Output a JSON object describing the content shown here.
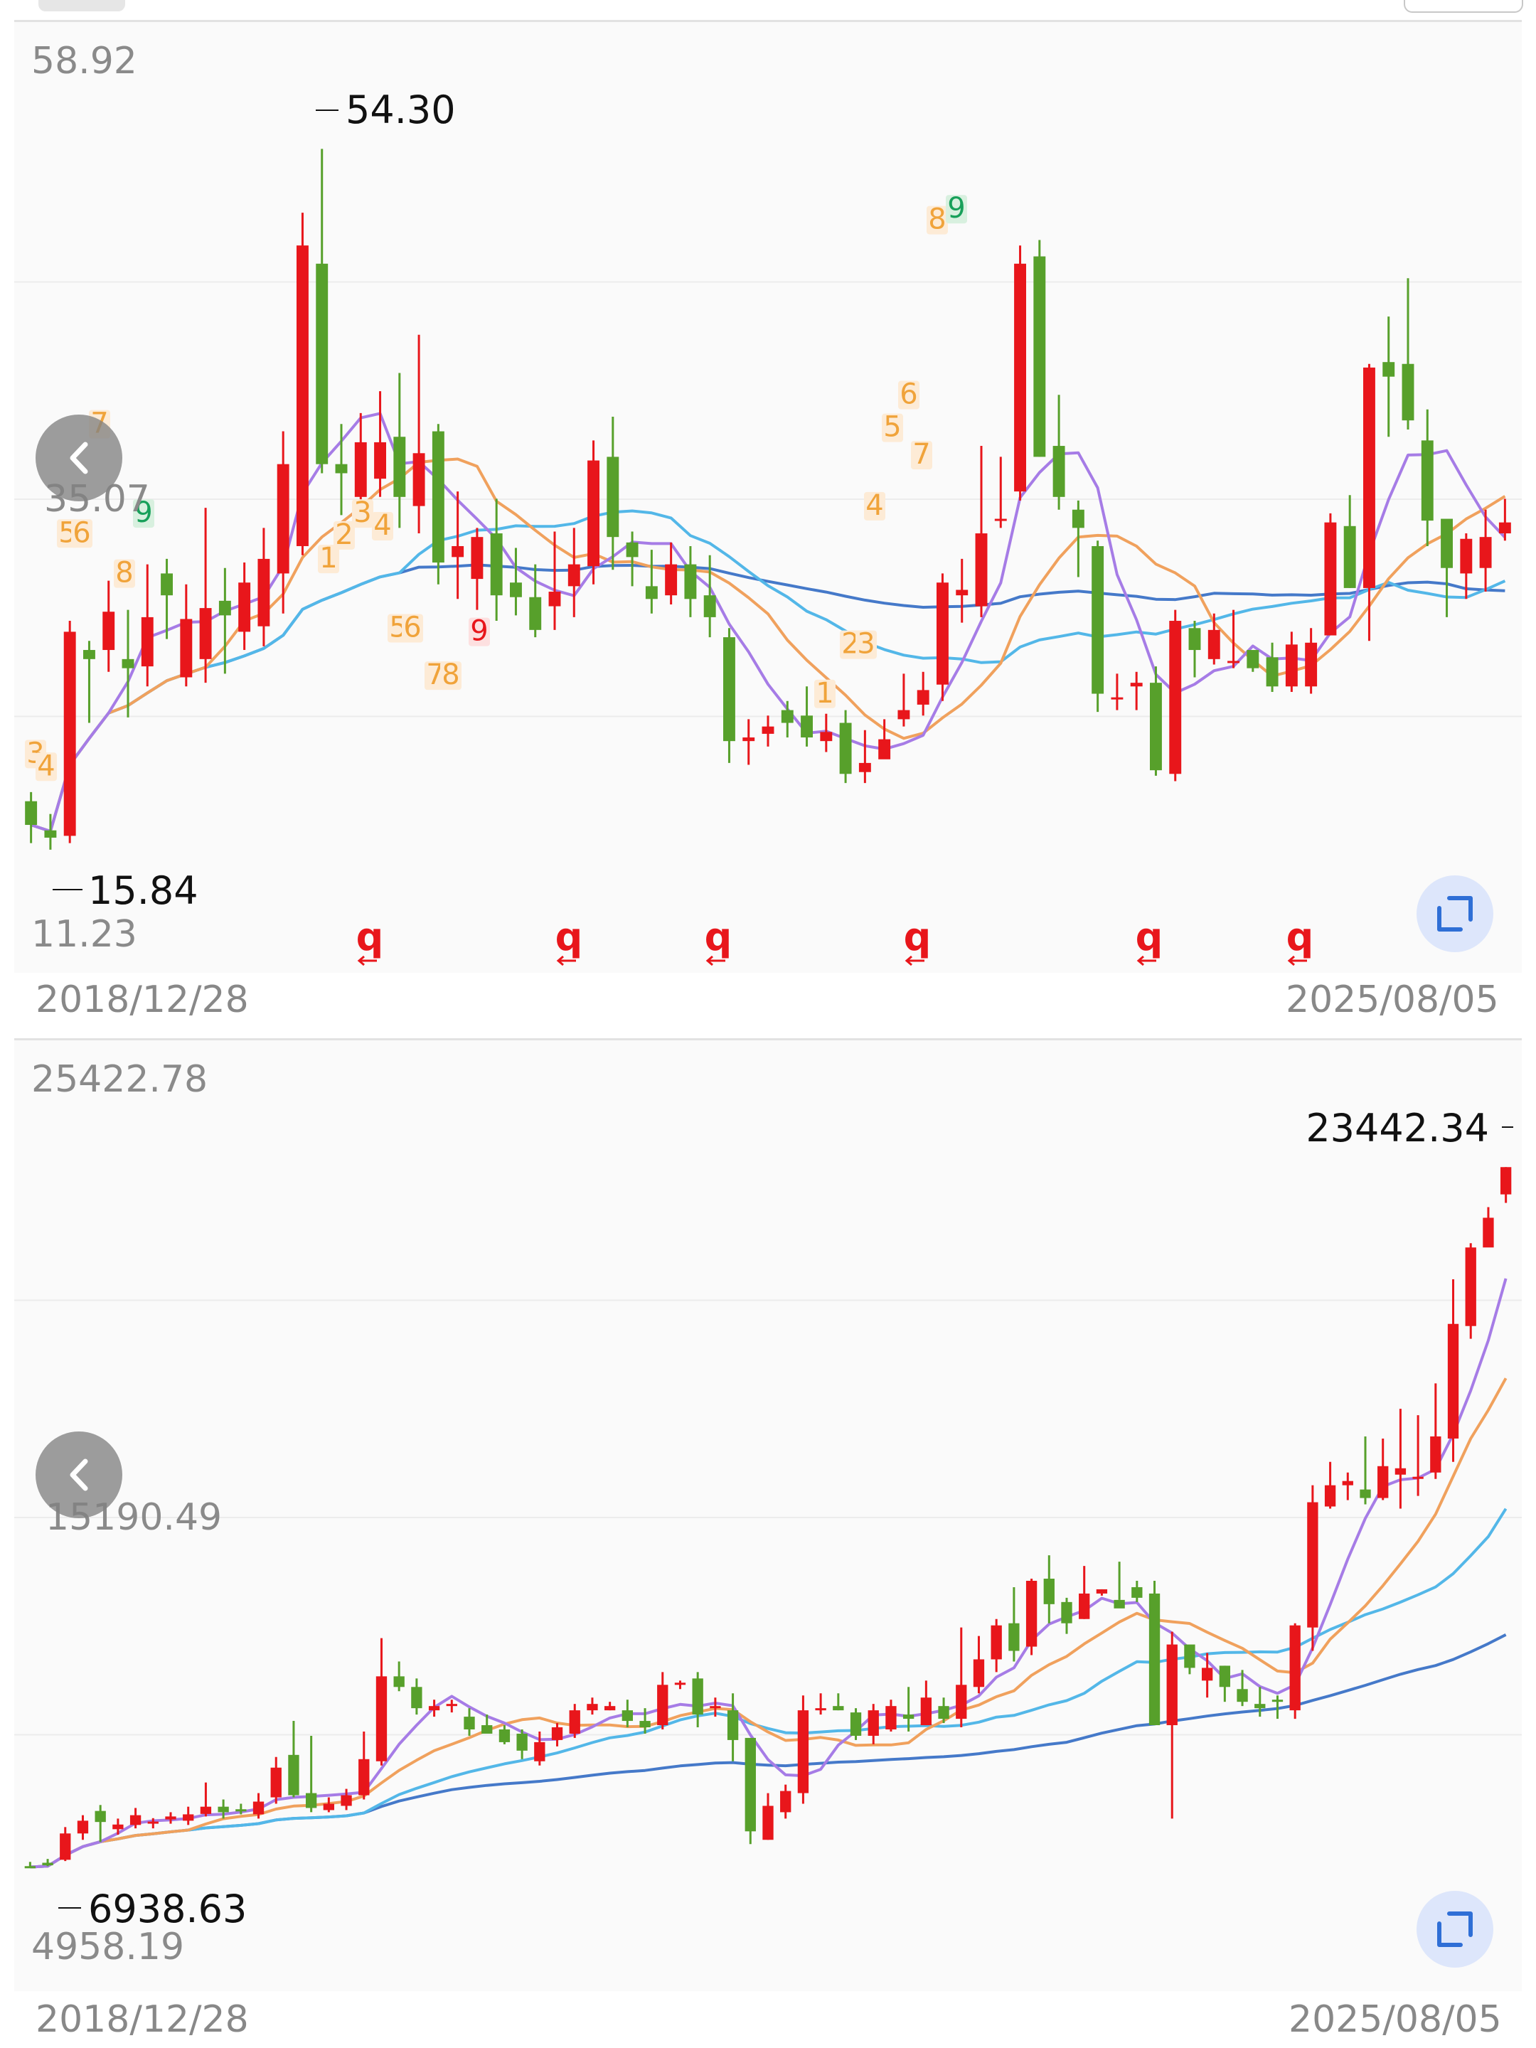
{
  "colors": {
    "up": "#e8161b",
    "down": "#57a02b",
    "ma5": "#a67ce6",
    "ma10": "#f0a15d",
    "ma20": "#53b7e8",
    "ma60": "#4579c9",
    "text_axis": "#8a8a8a",
    "text_mark": "#111111",
    "td_orange": "#f0a33a",
    "td_red": "#e8161b",
    "td_green": "#18a05a"
  },
  "icons": {
    "back": "chevron-left-icon",
    "expand": "expand-icon"
  },
  "chart_data": [
    {
      "type": "candlestick",
      "x_start": "2018/12/28",
      "x_end": "2025/08/05",
      "axis_labels": {
        "top": "58.92",
        "mid": "35.07",
        "bottom": "11.23"
      },
      "ylim": [
        11.23,
        58.92
      ],
      "max_label": "54.30",
      "min_label": "15.84",
      "candles": [
        [
          18.5,
          17.2,
          19.0,
          16.2
        ],
        [
          16.9,
          16.5,
          17.8,
          15.84
        ],
        [
          16.6,
          27.8,
          28.4,
          16.2
        ],
        [
          26.8,
          26.3,
          27.3,
          22.8
        ],
        [
          26.8,
          28.9,
          30.6,
          25.6
        ],
        [
          26.3,
          25.8,
          29.0,
          23.1
        ],
        [
          25.9,
          28.6,
          31.5,
          24.8
        ],
        [
          31.0,
          29.8,
          31.8,
          27.4
        ],
        [
          25.3,
          28.5,
          30.4,
          24.8
        ],
        [
          26.3,
          29.1,
          34.6,
          25.0
        ],
        [
          29.5,
          28.7,
          31.3,
          25.5
        ],
        [
          27.8,
          30.5,
          31.6,
          26.8
        ],
        [
          28.1,
          31.8,
          33.5,
          27.0
        ],
        [
          31.0,
          37.0,
          38.8,
          28.8
        ],
        [
          32.5,
          49.0,
          50.8,
          32.0
        ],
        [
          48.0,
          37.0,
          54.3,
          36.5
        ],
        [
          37.0,
          36.5,
          39.2,
          34.2
        ],
        [
          35.2,
          38.2,
          39.8,
          34.0
        ],
        [
          36.2,
          38.2,
          41.0,
          35.2
        ],
        [
          38.5,
          35.2,
          42.0,
          33.5
        ],
        [
          34.7,
          37.6,
          44.1,
          33.2
        ],
        [
          38.8,
          31.6,
          39.2,
          30.4
        ],
        [
          31.9,
          32.5,
          35.5,
          29.6
        ],
        [
          30.7,
          33.0,
          33.5,
          29.0
        ],
        [
          33.2,
          29.8,
          35.1,
          28.4
        ],
        [
          30.5,
          29.7,
          32.4,
          28.7
        ],
        [
          29.7,
          27.9,
          31.5,
          27.5
        ],
        [
          29.2,
          30.0,
          33.3,
          27.9
        ],
        [
          30.3,
          31.5,
          33.5,
          28.6
        ],
        [
          31.4,
          37.2,
          38.3,
          30.4
        ],
        [
          37.4,
          33.0,
          39.6,
          31.2
        ],
        [
          32.7,
          31.9,
          33.3,
          30.3
        ],
        [
          30.3,
          29.6,
          32.3,
          28.8
        ],
        [
          29.8,
          31.5,
          32.7,
          29.3
        ],
        [
          31.5,
          29.6,
          32.5,
          28.6
        ],
        [
          29.8,
          28.6,
          32.0,
          27.5
        ],
        [
          27.5,
          21.8,
          28.0,
          20.6
        ],
        [
          21.8,
          22.0,
          23.0,
          20.5
        ],
        [
          22.2,
          22.6,
          23.2,
          21.5
        ],
        [
          23.5,
          22.8,
          24.0,
          22.0
        ],
        [
          23.2,
          22.0,
          24.8,
          21.5
        ],
        [
          21.8,
          22.3,
          23.3,
          21.2
        ],
        [
          22.8,
          20.0,
          23.5,
          19.5
        ],
        [
          20.1,
          20.6,
          22.4,
          19.5
        ],
        [
          20.8,
          21.9,
          23.0,
          21.0
        ],
        [
          23.0,
          23.5,
          25.5,
          22.6
        ],
        [
          23.8,
          24.6,
          25.6,
          23.2
        ],
        [
          24.9,
          30.5,
          31.0,
          24.0
        ],
        [
          29.8,
          30.1,
          31.8,
          28.3
        ],
        [
          29.2,
          33.2,
          38.0,
          28.6
        ],
        [
          34.0,
          34.0,
          37.4,
          33.5
        ],
        [
          35.5,
          48.0,
          49.0,
          35.0
        ],
        [
          48.4,
          37.4,
          49.3,
          37.4
        ],
        [
          38.0,
          35.2,
          40.8,
          34.5
        ],
        [
          34.5,
          33.5,
          35.0,
          30.8
        ],
        [
          32.5,
          24.4,
          32.8,
          23.4
        ],
        [
          24.2,
          24.2,
          25.5,
          23.5
        ],
        [
          24.8,
          25.0,
          25.6,
          23.5
        ],
        [
          25.0,
          20.2,
          25.9,
          19.9
        ],
        [
          20.0,
          28.4,
          29.0,
          19.6
        ],
        [
          28.0,
          26.8,
          28.4,
          25.3
        ],
        [
          26.3,
          27.9,
          28.8,
          26.0
        ],
        [
          26.2,
          26.2,
          29.0,
          25.8
        ],
        [
          26.8,
          25.8,
          26.7,
          25.6
        ],
        [
          26.4,
          24.8,
          27.2,
          24.5
        ],
        [
          24.8,
          27.1,
          27.8,
          24.5
        ],
        [
          24.8,
          27.2,
          28.0,
          24.4
        ],
        [
          27.6,
          33.8,
          34.3,
          27.6
        ],
        [
          33.6,
          30.2,
          35.3,
          30.2
        ],
        [
          30.2,
          42.3,
          42.5,
          27.3
        ],
        [
          42.6,
          41.8,
          45.1,
          38.5
        ],
        [
          42.5,
          39.4,
          47.2,
          38.9
        ],
        [
          38.3,
          33.9,
          40.0,
          32.5
        ],
        [
          34.0,
          31.3,
          32.8,
          28.6
        ],
        [
          31.0,
          32.9,
          33.2,
          29.6
        ],
        [
          31.3,
          33.0,
          34.5,
          30.0
        ],
        [
          33.2,
          33.8,
          35.1,
          32.8
        ]
      ]
    },
    {
      "type": "candlestick",
      "x_start": "2018/12/28",
      "x_end": "2025/08/05",
      "axis_labels": {
        "top": "25422.78",
        "mid": "15190.49",
        "bottom": "4958.19"
      },
      "ylim": [
        4958.19,
        25422.78
      ],
      "max_label": "23442.34",
      "min_label": "6938.63",
      "candles": [
        [
          6980,
          6960,
          7080,
          6938.63
        ],
        [
          7060,
          7000,
          7150,
          6980
        ],
        [
          7130,
          7750,
          7900,
          7100
        ],
        [
          7750,
          8050,
          8180,
          7600
        ],
        [
          8280,
          8020,
          8420,
          7550
        ],
        [
          7850,
          7960,
          8100,
          7720
        ],
        [
          7950,
          8180,
          8350,
          7870
        ],
        [
          8030,
          8030,
          8110,
          7870
        ],
        [
          8080,
          8150,
          8250,
          7980
        ],
        [
          8050,
          8200,
          8380,
          7950
        ],
        [
          8210,
          8380,
          8950,
          8150
        ],
        [
          8380,
          8250,
          8550,
          8100
        ],
        [
          8320,
          8300,
          8450,
          8200
        ],
        [
          8200,
          8500,
          8700,
          8100
        ],
        [
          8600,
          9300,
          9550,
          8450
        ],
        [
          9600,
          8650,
          10400,
          8600
        ],
        [
          8700,
          8350,
          10050,
          8250
        ],
        [
          8300,
          8450,
          8600,
          8250
        ],
        [
          8400,
          8650,
          8800,
          8300
        ],
        [
          8650,
          9500,
          10150,
          8550
        ],
        [
          9450,
          11450,
          12350,
          9350
        ],
        [
          11450,
          11200,
          11800,
          11100
        ],
        [
          11200,
          10700,
          11400,
          10550
        ],
        [
          10650,
          10750,
          10900,
          10500
        ],
        [
          10750,
          10800,
          10900,
          10600
        ],
        [
          10500,
          10200,
          10700,
          10050
        ],
        [
          10300,
          10100,
          10550,
          10200
        ],
        [
          10200,
          9900,
          10300,
          9850
        ],
        [
          10100,
          9700,
          10200,
          9500
        ],
        [
          9450,
          9900,
          10150,
          9350
        ],
        [
          9950,
          10250,
          10350,
          9800
        ],
        [
          10100,
          10650,
          10800,
          10000
        ],
        [
          10650,
          10800,
          10950,
          10550
        ],
        [
          10650,
          10750,
          10850,
          10650
        ],
        [
          10650,
          10400,
          10900,
          10250
        ],
        [
          10400,
          10250,
          10700,
          10100
        ],
        [
          10300,
          11250,
          11550,
          10200
        ],
        [
          11250,
          11300,
          11350,
          11150
        ],
        [
          11400,
          10550,
          11550,
          10250
        ],
        [
          10750,
          10750,
          10950,
          10500
        ],
        [
          10650,
          9950,
          11050,
          9450
        ],
        [
          10000,
          7800,
          10000,
          7500
        ],
        [
          7600,
          8400,
          8700,
          7600
        ],
        [
          8250,
          8750,
          8900,
          8100
        ],
        [
          8700,
          10650,
          11000,
          8450
        ],
        [
          10700,
          10700,
          11050,
          10550
        ],
        [
          10750,
          10650,
          11050,
          10650
        ],
        [
          10600,
          10050,
          10700,
          9950
        ],
        [
          10050,
          10650,
          10800,
          9850
        ],
        [
          10200,
          10750,
          10900,
          10150
        ],
        [
          10550,
          10450,
          11200,
          10150
        ],
        [
          10300,
          10950,
          11350,
          10300
        ],
        [
          10750,
          10450,
          10950,
          10350
        ],
        [
          10450,
          11250,
          12600,
          10250
        ],
        [
          11200,
          11850,
          12400,
          11050
        ],
        [
          11850,
          12650,
          12800,
          11550
        ],
        [
          12700,
          12050,
          13550,
          11800
        ],
        [
          12150,
          13700,
          13750,
          11950
        ],
        [
          13750,
          13150,
          14300,
          12700
        ],
        [
          13200,
          12700,
          13300,
          12450
        ],
        [
          12800,
          13400,
          14050,
          12800
        ],
        [
          13400,
          13500,
          13500,
          13350
        ],
        [
          13250,
          13050,
          14150,
          13250
        ],
        [
          13550,
          13300,
          13700,
          13200
        ],
        [
          13400,
          10300,
          13700,
          10300
        ],
        [
          10300,
          12200,
          12500,
          8100
        ],
        [
          12200,
          11650,
          12150,
          11500
        ],
        [
          11350,
          11650,
          12000,
          10950
        ],
        [
          11700,
          11200,
          11700,
          10850
        ],
        [
          11150,
          10850,
          11600,
          10750
        ],
        [
          10800,
          10700,
          11200,
          10500
        ],
        [
          10900,
          10850,
          11000,
          10450
        ],
        [
          10650,
          12650,
          12700,
          10450
        ],
        [
          12600,
          15550,
          15950,
          12050
        ],
        [
          15450,
          15950,
          16500,
          15400
        ],
        [
          15950,
          16050,
          16250,
          15600
        ],
        [
          15850,
          15650,
          17100,
          15500
        ],
        [
          15650,
          16400,
          17050,
          15600
        ],
        [
          16200,
          16350,
          17750,
          15400
        ],
        [
          16100,
          16150,
          17600,
          15700
        ],
        [
          16250,
          17100,
          18350,
          16100
        ],
        [
          17050,
          19750,
          20800,
          16500
        ],
        [
          19700,
          21550,
          21650,
          19400
        ],
        [
          21550,
          22250,
          22500,
          21600
        ],
        [
          22800,
          23442.34,
          23442.34,
          22600
        ]
      ]
    }
  ],
  "td_marks": [
    [
      {
        "t": "3",
        "c": "o",
        "x": 30,
        "y": 20.7
      },
      {
        "t": "4",
        "c": "o",
        "x": 45,
        "y": 20.0
      },
      {
        "t": "7",
        "c": "o",
        "x": 120,
        "y": 38.8
      },
      {
        "t": "5",
        "c": "o",
        "x": 75,
        "y": 32.8
      },
      {
        "t": "6",
        "c": "o",
        "x": 95,
        "y": 32.8
      },
      {
        "t": "9",
        "c": "g",
        "x": 182,
        "y": 33.9
      },
      {
        "t": "8",
        "c": "o",
        "x": 155,
        "y": 30.6
      },
      {
        "t": "1",
        "c": "o",
        "x": 442,
        "y": 31.4
      },
      {
        "t": "2",
        "c": "o",
        "x": 464,
        "y": 32.7
      },
      {
        "t": "3",
        "c": "o",
        "x": 490,
        "y": 33.9
      },
      {
        "t": "4",
        "c": "o",
        "x": 518,
        "y": 33.2
      },
      {
        "t": "5",
        "c": "o",
        "x": 540,
        "y": 27.6
      },
      {
        "t": "6",
        "c": "o",
        "x": 560,
        "y": 27.6
      },
      {
        "t": "7",
        "c": "o",
        "x": 592,
        "y": 25.0
      },
      {
        "t": "8",
        "c": "o",
        "x": 614,
        "y": 25.0
      },
      {
        "t": "9",
        "c": "r",
        "x": 654,
        "y": 27.4
      },
      {
        "t": "1",
        "c": "o",
        "x": 1140,
        "y": 24.0
      },
      {
        "t": "2",
        "c": "o",
        "x": 1176,
        "y": 26.7
      },
      {
        "t": "3",
        "c": "o",
        "x": 1198,
        "y": 26.7
      },
      {
        "t": "4",
        "c": "o",
        "x": 1210,
        "y": 34.3
      },
      {
        "t": "5",
        "c": "o",
        "x": 1235,
        "y": 38.6
      },
      {
        "t": "6",
        "c": "o",
        "x": 1258,
        "y": 40.4
      },
      {
        "t": "7",
        "c": "o",
        "x": 1276,
        "y": 37.1
      },
      {
        "t": "8",
        "c": "o",
        "x": 1298,
        "y": 50.0
      },
      {
        "t": "9",
        "c": "g",
        "x": 1325,
        "y": 50.6
      }
    ]
  ],
  "bottom_markers": [
    {
      "t": "q",
      "x": 500
    },
    {
      "t": "q",
      "x": 780
    },
    {
      "t": "q",
      "x": 990
    },
    {
      "t": "q",
      "x": 1270
    },
    {
      "t": "q",
      "x": 1596
    },
    {
      "t": "q",
      "x": 1808
    }
  ]
}
